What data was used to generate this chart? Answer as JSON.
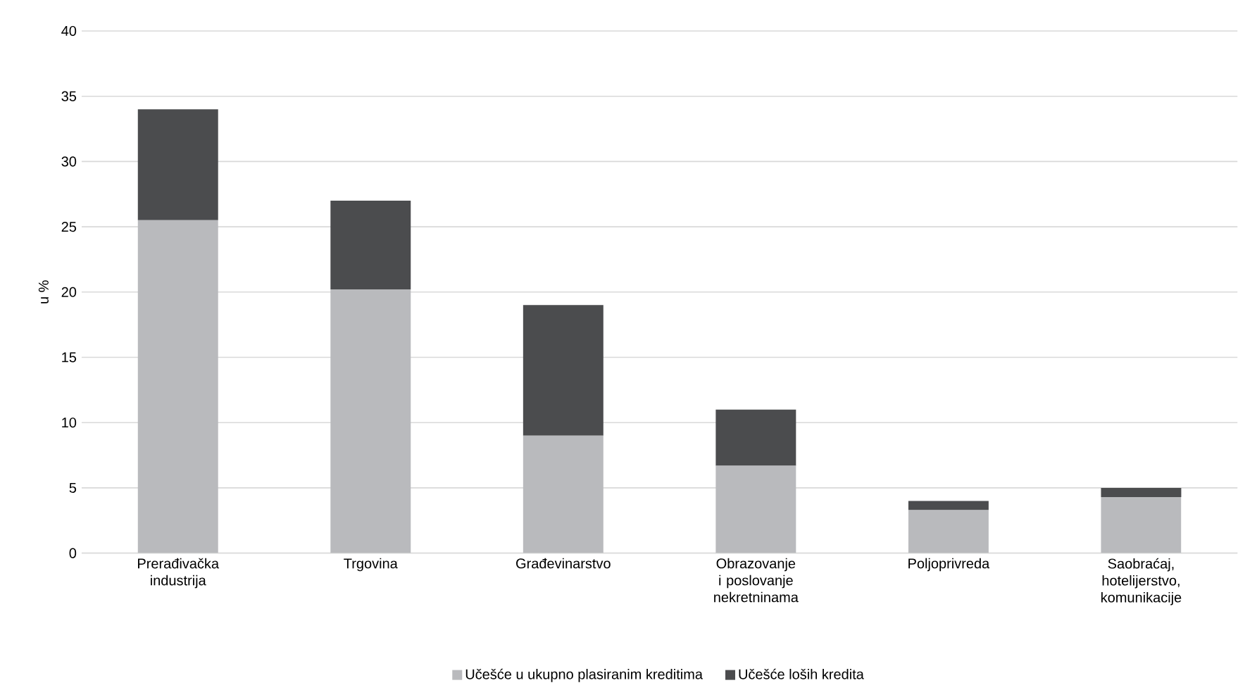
{
  "chart_data": {
    "type": "bar",
    "stacked": true,
    "ylabel": "u %",
    "categories": [
      "Prerađivačka industrija",
      "Trgovina",
      "Građevinarstvo",
      "Obrazovanje i poslovanje nekretninama",
      "Poljoprivreda",
      "Saobraćaj, hotelijerstvo, komunikacije"
    ],
    "series": [
      {
        "name": "Učešće u ukupno plasiranim kreditima",
        "color": "#b9babd",
        "values": [
          25.5,
          20.2,
          9,
          6.7,
          3.3,
          4.3
        ]
      },
      {
        "name": "Učešće loših kredita",
        "color": "#4b4c4e",
        "values": [
          8.5,
          6.8,
          10,
          4.3,
          0.7,
          0.7
        ]
      }
    ],
    "ylim": [
      0,
      40
    ],
    "yticks": [
      0,
      5,
      10,
      15,
      20,
      25,
      30,
      35,
      40
    ],
    "grid": "y",
    "legend": "bottom"
  }
}
